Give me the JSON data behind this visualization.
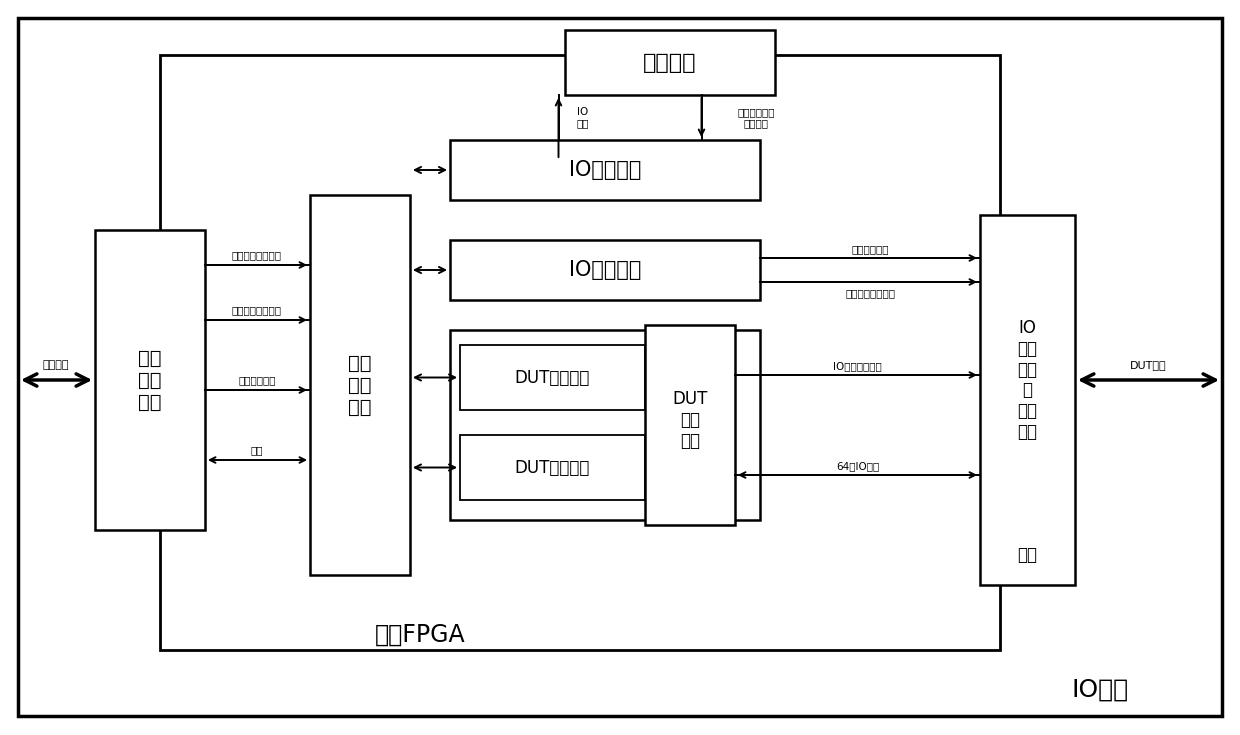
{
  "bg_color": "#ffffff",
  "title_io_module": "IO模块",
  "title_fpga": "主控FPGA",
  "block_clock": "时钟电路",
  "block_io_clock_ctrl": "IO时钟控制",
  "block_io_level_ctrl": "IO电平控制",
  "block_dut_drive": "DUT驱动产生",
  "block_dut_monitor": "DUT输出监测",
  "block_dut_dist_line1": "DUT",
  "block_dut_dist_line2": "信号",
  "block_dut_dist_line3": "分配",
  "block_local_bus_line1": "局部",
  "block_local_bus_line2": "总线",
  "block_local_bus_line3": "接口",
  "block_interboard_line1": "板间",
  "block_interboard_line2": "总线",
  "block_interboard_line3": "接口",
  "block_io_port_line1": "IO",
  "block_io_port_line2": "端口",
  "block_io_port_line3": "电平",
  "block_io_port_line4": "及",
  "block_io_port_line5": "方向",
  "block_io_port_line6": "调整",
  "block_io_circuit": "电路",
  "label_io_clock_line1": "IO",
  "label_io_clock_line2": "时钟",
  "label_ext_clock_line1": "外部时钟电路",
  "label_ext_clock_line2": "控制信号",
  "label_interboard_bus": "板间总线",
  "label_local_out_ctrl": "局部总线输出控制",
  "label_local_in_ctrl": "局部总线输入控制",
  "label_local_addr": "局部总线地址",
  "label_data": "数据",
  "label_real_level": "实测电平信号",
  "label_level_adj": "电平调整控制信号",
  "label_io_dir": "IO方向控制信号",
  "label_64io": "64路IO信号",
  "label_dut_signal": "DUT信号",
  "lc": "#000000"
}
